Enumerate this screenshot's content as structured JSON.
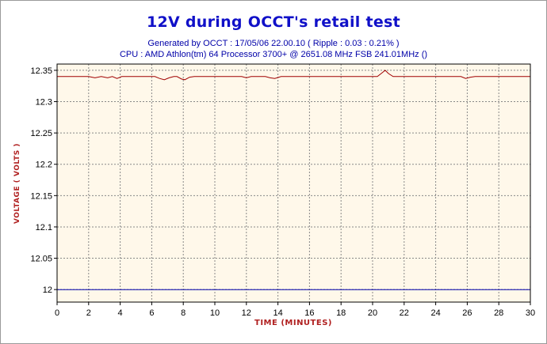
{
  "chart_data": {
    "type": "line",
    "title": "12V during OCCT's retail test",
    "subtitle": [
      "Generated by OCCT : 17/05/06 22.00.10 ( Ripple : 0.03 : 0.21% )",
      "CPU : AMD Athlon(tm) 64 Processor 3700+ @ 2651.08 MHz FSB 241.01MHz ()"
    ],
    "xlabel": "TIME (MINUTES)",
    "ylabel": "VOLTAGE ( VOLTS )",
    "xlim": [
      0,
      30
    ],
    "ylim": [
      11.98,
      12.36
    ],
    "xticks": [
      0,
      2,
      4,
      6,
      8,
      10,
      12,
      14,
      16,
      18,
      20,
      22,
      24,
      26,
      28,
      30
    ],
    "yticks": [
      12,
      12.05,
      12.1,
      12.15,
      12.2,
      12.25,
      12.3,
      12.35
    ],
    "ytick_labels": [
      "12",
      "12.05",
      "12.1",
      "12.15",
      "12.2",
      "12.25",
      "12.3",
      "12.35"
    ],
    "grid": true,
    "background": "#fff8ea",
    "series": [
      {
        "color": "#a00000",
        "x": [
          0,
          2.0,
          2.4,
          2.8,
          3.2,
          3.5,
          3.8,
          4.1,
          4.5,
          6.2,
          6.5,
          6.8,
          7.1,
          7.4,
          7.6,
          7.9,
          8.1,
          8.4,
          8.7,
          11.7,
          12.0,
          12.3,
          13.2,
          13.5,
          13.8,
          14.2,
          20.3,
          20.6,
          20.8,
          21.0,
          21.3,
          25.6,
          25.9,
          26.2,
          26.5,
          30
        ],
        "y": [
          12.34,
          12.34,
          12.338,
          12.34,
          12.338,
          12.34,
          12.337,
          12.34,
          12.34,
          12.34,
          12.337,
          12.335,
          12.338,
          12.34,
          12.34,
          12.336,
          12.335,
          12.339,
          12.34,
          12.34,
          12.338,
          12.34,
          12.34,
          12.338,
          12.337,
          12.34,
          12.34,
          12.346,
          12.35,
          12.345,
          12.34,
          12.34,
          12.337,
          12.339,
          12.34,
          12.34
        ]
      },
      {
        "color": "#0000aa",
        "x": [
          0,
          30
        ],
        "y": [
          12.0,
          12.0
        ]
      }
    ]
  }
}
